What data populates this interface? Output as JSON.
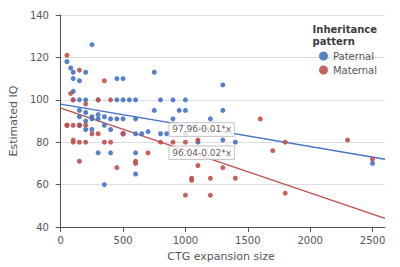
{
  "chart_data": {
    "type": "scatter",
    "xlabel": "CTG expansion size",
    "ylabel": "Estimated IQ",
    "xlim": [
      -30,
      2600
    ],
    "ylim": [
      40,
      140
    ],
    "xticks": [
      0,
      500,
      1000,
      1500,
      2000,
      2500
    ],
    "yticks": [
      40,
      60,
      80,
      100,
      120,
      140
    ],
    "grid": true,
    "legend": "upper right",
    "legend_title": "Inheritance\npattern",
    "marker": "circle",
    "series": [
      {
        "name": "Paternal",
        "color": "#4472c4",
        "points": [
          [
            50,
            118
          ],
          [
            80,
            115
          ],
          [
            100,
            113
          ],
          [
            100,
            110
          ],
          [
            100,
            100
          ],
          [
            100,
            104
          ],
          [
            150,
            109
          ],
          [
            150,
            100
          ],
          [
            150,
            95
          ],
          [
            150,
            88
          ],
          [
            150,
            92
          ],
          [
            150,
            88
          ],
          [
            200,
            100
          ],
          [
            200,
            113
          ],
          [
            200,
            94
          ],
          [
            200,
            90
          ],
          [
            200,
            86
          ],
          [
            250,
            91
          ],
          [
            250,
            86
          ],
          [
            250,
            126
          ],
          [
            250,
            92
          ],
          [
            300,
            100
          ],
          [
            300,
            93
          ],
          [
            300,
            91
          ],
          [
            300,
            75
          ],
          [
            350,
            92
          ],
          [
            350,
            88
          ],
          [
            350,
            60
          ],
          [
            400,
            91
          ],
          [
            400,
            86
          ],
          [
            400,
            75
          ],
          [
            450,
            110
          ],
          [
            450,
            100
          ],
          [
            450,
            91
          ],
          [
            500,
            110
          ],
          [
            500,
            100
          ],
          [
            500,
            91
          ],
          [
            500,
            84
          ],
          [
            500,
            84
          ],
          [
            550,
            100
          ],
          [
            600,
            100
          ],
          [
            600,
            91
          ],
          [
            600,
            84
          ],
          [
            600,
            75
          ],
          [
            600,
            65
          ],
          [
            650,
            84
          ],
          [
            700,
            85
          ],
          [
            750,
            113
          ],
          [
            750,
            95
          ],
          [
            800,
            100
          ],
          [
            800,
            84
          ],
          [
            850,
            84
          ],
          [
            900,
            100
          ],
          [
            900,
            91
          ],
          [
            950,
            95
          ],
          [
            1000,
            95
          ],
          [
            1000,
            84
          ],
          [
            1000,
            100
          ],
          [
            1100,
            80
          ],
          [
            1200,
            91
          ],
          [
            1300,
            107
          ],
          [
            1300,
            81
          ],
          [
            1300,
            95
          ],
          [
            1400,
            80
          ],
          [
            2500,
            70
          ]
        ],
        "fit": {
          "x": [
            0,
            2600
          ],
          "y": [
            97.96,
            71.96
          ]
        }
      },
      {
        "name": "Maternal",
        "color": "#c0504d",
        "points": [
          [
            50,
            121
          ],
          [
            50,
            88
          ],
          [
            50,
            88
          ],
          [
            80,
            103
          ],
          [
            100,
            100
          ],
          [
            100,
            80
          ],
          [
            100,
            88
          ],
          [
            100,
            81
          ],
          [
            150,
            114
          ],
          [
            150,
            88
          ],
          [
            150,
            80
          ],
          [
            150,
            71
          ],
          [
            200,
            98
          ],
          [
            200,
            88
          ],
          [
            200,
            80
          ],
          [
            250,
            84
          ],
          [
            300,
            100
          ],
          [
            300,
            84
          ],
          [
            350,
            109
          ],
          [
            350,
            80
          ],
          [
            400,
            100
          ],
          [
            400,
            80
          ],
          [
            450,
            68
          ],
          [
            500,
            84
          ],
          [
            600,
            70
          ],
          [
            600,
            71
          ],
          [
            700,
            75
          ],
          [
            800,
            80
          ],
          [
            900,
            80
          ],
          [
            1000,
            80
          ],
          [
            1000,
            55
          ],
          [
            1050,
            62
          ],
          [
            1050,
            63
          ],
          [
            1100,
            69
          ],
          [
            1100,
            81
          ],
          [
            1200,
            63
          ],
          [
            1200,
            55
          ],
          [
            1300,
            68
          ],
          [
            1400,
            63
          ],
          [
            1600,
            91
          ],
          [
            1700,
            76
          ],
          [
            1800,
            80
          ],
          [
            1800,
            56
          ],
          [
            2300,
            81
          ],
          [
            2500,
            72
          ]
        ],
        "fit": {
          "x": [
            0,
            2600
          ],
          "y": [
            96.04,
            44.04
          ]
        }
      }
    ],
    "annotations": [
      {
        "text": "97.96-0.01*x",
        "x": 870,
        "y": 86
      },
      {
        "text": "96.04-0.02*x",
        "x": 870,
        "y": 75
      }
    ]
  }
}
